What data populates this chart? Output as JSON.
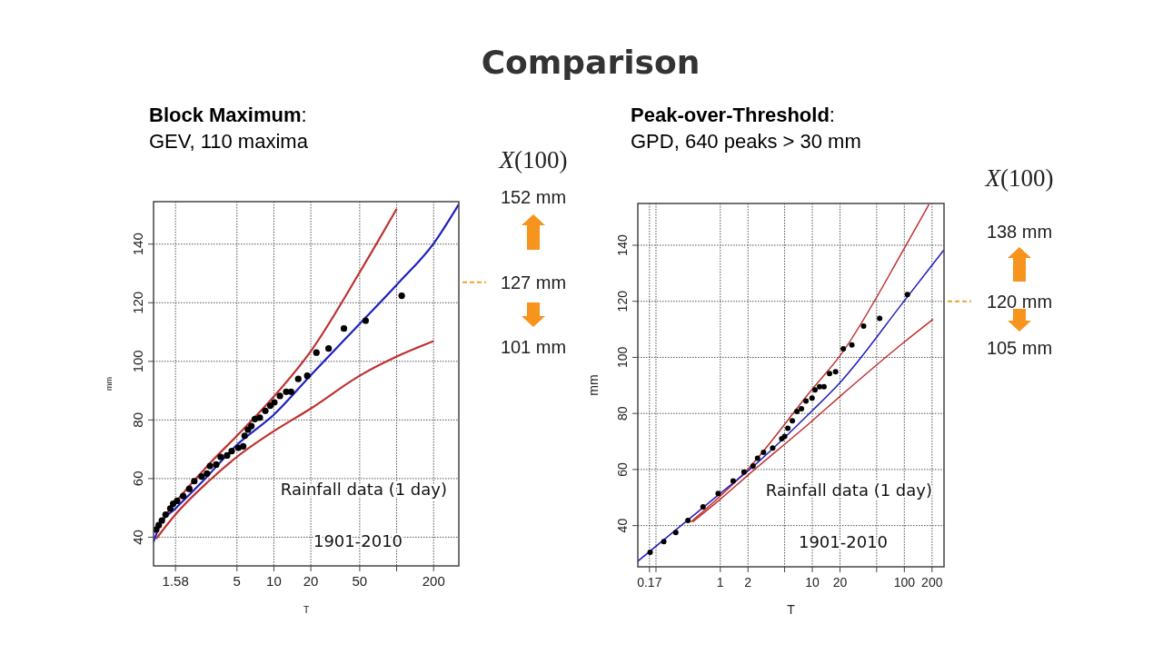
{
  "chart_data": [
    {
      "type": "other",
      "title": "Comparison"
    },
    {
      "type": "scatter",
      "title": "Block Maximum:",
      "subtitle": "GEV, 110 maxima",
      "xlabel": "T",
      "ylabel": "mm",
      "grid": true,
      "log": "x",
      "xlim": [
        1.047,
        321
      ],
      "ylim": [
        30.2,
        154.5
      ],
      "xticks": [
        1.58,
        5,
        10,
        20,
        50,
        {
          "value": 100,
          "label": null
        },
        200
      ],
      "yticks": [
        40,
        60,
        80,
        100,
        120,
        140
      ],
      "series": [
        {
          "type": "line",
          "color": "#c03030",
          "x": [
            1.101,
            1.582,
            2.945,
            5,
            10,
            20,
            50,
            100
          ],
          "values": [
            43.1,
            51.9,
            64.8,
            74.6,
            88.0,
            103.5,
            130.4,
            152
          ]
        },
        {
          "type": "line",
          "color": "#c03030",
          "x": [
            1.101,
            1.582,
            2.945,
            5,
            10,
            20,
            50,
            101,
            200
          ],
          "values": [
            39.5,
            47.8,
            59.1,
            67.4,
            76.2,
            83.9,
            95.1,
            101.7,
            106.9
          ]
        },
        {
          "type": "scatter",
          "color": "#000000",
          "x": [
            1.101,
            1.154,
            1.224,
            1.313,
            1.433,
            1.512,
            1.629,
            1.824,
            2.047,
            2.248,
            2.575,
            2.852,
            3.018,
            3.388,
            3.685,
            4.155,
            4.536,
            5.137,
            5.62,
            5.78,
            6.15,
            6.56,
            7.0,
            7.68,
            8.52,
            9.36,
            10.09,
            11.2,
            12.6,
            13.8,
            15.8,
            18.7,
            22.2,
            27.9,
            37.2,
            55.9,
            110
          ],
          "values": [
            42.6,
            44.1,
            45.7,
            47.7,
            49.8,
            51.4,
            52.4,
            54.0,
            56.5,
            59.1,
            60.7,
            61.7,
            64.3,
            64.8,
            67.4,
            67.9,
            69.4,
            70.5,
            71.0,
            74.6,
            76.7,
            77.9,
            80.3,
            80.8,
            83.1,
            84.9,
            86.0,
            88.2,
            89.6,
            89.6,
            94.0,
            95.1,
            103.0,
            104.4,
            111.2,
            113.9,
            122.4
          ]
        },
        {
          "type": "line",
          "color": "#2020c0",
          "x": [
            1.047,
            1.18,
            1.582,
            2.636,
            5,
            10,
            20,
            50,
            101,
            200,
            321
          ],
          "values": [
            38.4,
            44.1,
            49.8,
            59.1,
            71.5,
            81.8,
            95.3,
            112.8,
            126.3,
            140.2,
            153.6
          ]
        }
      ],
      "ref_lines": [
        {
          "axis": "y",
          "value": 127,
          "label": "127 mm",
          "color": "#f0a030",
          "line_style": "dashed"
        }
      ],
      "annotations": [
        "Rainfall data (1 day)",
        "1901-2010",
        "X(100)",
        "152 mm",
        "101 mm"
      ]
    },
    {
      "type": "scatter",
      "title": "Peak-over-Threshold:",
      "subtitle": "GPD, 640 peaks > 30 mm",
      "xlabel": "T",
      "ylabel": "mm",
      "grid": true,
      "log": "x",
      "xlim": [
        0.127,
        270
      ],
      "ylim": [
        25.3,
        154.9
      ],
      "xticks": [
        0.17,
        {
          "value": 0.2,
          "label": null
        },
        1,
        2,
        {
          "value": 5,
          "label": null
        },
        10,
        20,
        {
          "value": 50,
          "label": null
        },
        100,
        200
      ],
      "yticks": [
        40,
        60,
        80,
        100,
        120,
        140
      ],
      "series": [
        {
          "type": "line",
          "color": "#c03030",
          "x": [
            0.48,
            2,
            10,
            20,
            100,
            185
          ],
          "values": [
            41.3,
            60.2,
            88.7,
            100.6,
            138.9,
            154.5
          ]
        },
        {
          "type": "line",
          "color": "#c03030",
          "x": [
            0.5,
            1,
            2,
            10,
            20,
            100,
            205
          ],
          "values": [
            41.3,
            49.4,
            58.0,
            77.4,
            86.1,
            105.5,
            113.6
          ]
        },
        {
          "type": "scatter",
          "color": "#000000",
          "x": [
            0.173,
            0.243,
            0.328,
            0.445,
            0.649,
            0.948,
            1.38,
            1.81,
            2.27,
            2.54,
            2.95,
            3.71,
            4.65,
            5.0,
            5.42,
            6.07,
            6.8,
            7.62,
            8.53,
            9.93,
            10.7,
            12.0,
            13.4,
            15.4,
            17.9,
            21.7,
            26.9,
            36.1,
            53.9,
            108
          ],
          "values": [
            30.5,
            34.3,
            37.5,
            41.8,
            46.7,
            51.5,
            55.9,
            59.1,
            61.3,
            64.0,
            66.1,
            67.7,
            71.0,
            71.8,
            74.7,
            77.4,
            80.7,
            81.7,
            84.4,
            85.5,
            88.4,
            89.5,
            89.5,
            94.2,
            94.9,
            103.1,
            104.4,
            111.2,
            113.9,
            122.4
          ]
        },
        {
          "type": "line",
          "color": "#2020c0",
          "x": [
            0.127,
            1,
            2,
            10,
            20,
            100,
            270
          ],
          "values": [
            27.3,
            51.5,
            59.5,
            81,
            91,
            120.2,
            138.4
          ]
        }
      ],
      "ref_lines": [
        {
          "axis": "y",
          "value": 120,
          "label": "120 mm",
          "color": "#f0a030",
          "line_style": "dashed"
        }
      ],
      "annotations": [
        "Rainfall data (1 day)",
        "1901-2010",
        "X(100)",
        "138 mm",
        "105 mm"
      ]
    }
  ]
}
